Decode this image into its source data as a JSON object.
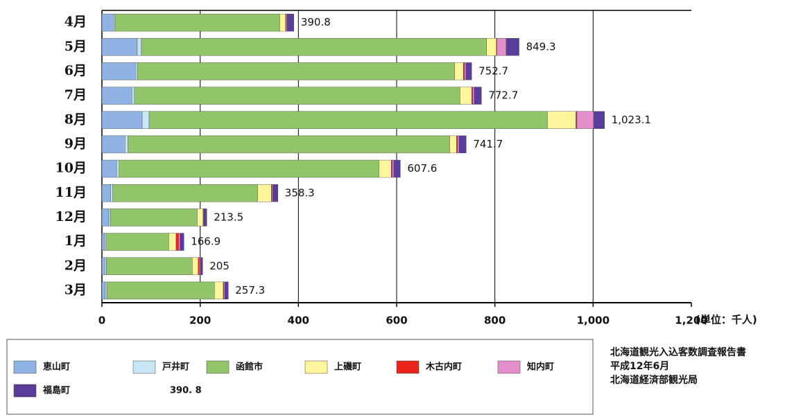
{
  "chart_data": {
    "type": "stacked-bar-horizontal",
    "categories": [
      "4月",
      "5月",
      "6月",
      "7月",
      "8月",
      "9月",
      "10月",
      "11月",
      "12月",
      "1月",
      "2月",
      "3月"
    ],
    "series": [
      {
        "name": "恵山町",
        "color": "#8fb4e3",
        "values": [
          23,
          72,
          68,
          61,
          82,
          47,
          30,
          18,
          14,
          5,
          6,
          7
        ]
      },
      {
        "name": "戸井町",
        "color": "#c8e6f5",
        "values": [
          3,
          8,
          4,
          5,
          14,
          6,
          5,
          4,
          3,
          3,
          3,
          3
        ]
      },
      {
        "name": "函館市",
        "color": "#92c46a",
        "values": [
          336,
          703,
          646,
          663,
          811,
          655,
          529,
          295,
          177,
          128,
          175,
          219
        ]
      },
      {
        "name": "上磯町",
        "color": "#fff59d",
        "values": [
          12,
          20,
          18,
          24,
          58,
          14,
          25,
          28,
          12,
          15,
          12,
          18
        ]
      },
      {
        "name": "木古内町",
        "color": "#e8241c",
        "values": [
          1,
          1,
          2,
          2,
          2,
          2,
          2,
          1,
          1,
          5,
          2,
          1
        ]
      },
      {
        "name": "知内町",
        "color": "#e48fcc",
        "values": [
          2,
          19,
          3,
          3,
          34,
          3,
          3,
          2,
          1,
          3,
          2,
          2
        ]
      },
      {
        "name": "福島町",
        "color": "#5a3d9a",
        "values": [
          13.8,
          26.3,
          11.7,
          14.7,
          22.1,
          14.7,
          13.6,
          10.3,
          5.5,
          7.9,
          5,
          7.3
        ]
      }
    ],
    "totals": [
      390.8,
      849.3,
      752.7,
      772.7,
      1023.1,
      741.7,
      607.6,
      358.3,
      213.5,
      166.9,
      205,
      257.3
    ],
    "total_labels": [
      "390.8",
      "849.3",
      "752.7",
      "772.7",
      "1,023.1",
      "741.7",
      "607.6",
      "358.3",
      "213.5",
      "166.9",
      "205",
      "257.3"
    ],
    "xlim": [
      0,
      1200
    ],
    "xticks": [
      0,
      200,
      400,
      600,
      800,
      {
        "value": 1000,
        "label": "1,000"
      },
      {
        "value": 1200,
        "label": "1,200"
      }
    ],
    "grid": true,
    "unit_label": "(単位：千人)",
    "legend_note": "390. 8",
    "source": [
      "北海道観光入込客数調査報告書",
      "平成12年6月",
      "北海道経済部観光局"
    ]
  }
}
